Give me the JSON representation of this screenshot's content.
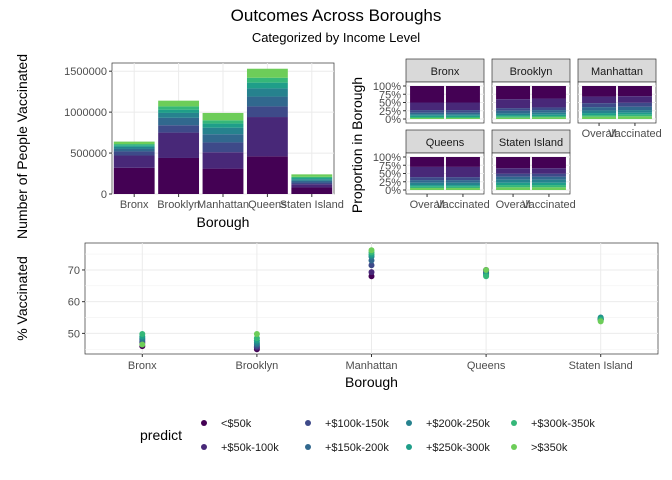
{
  "title": "Outcomes Across Boroughs",
  "subtitle": "Categorized by Income Level",
  "colors": [
    "#440154",
    "#482878",
    "#3E4A89",
    "#31688E",
    "#26828E",
    "#1F9E89",
    "#35B779",
    "#6DCD59",
    "#B4DE2C",
    "#FDE725"
  ],
  "chart_data": [
    {
      "type": "bar",
      "stacked": true,
      "xlabel": "Borough",
      "ylabel": "Number of People Vaccinated",
      "ylim": [
        0,
        1600000
      ],
      "yticks": [
        0,
        500000,
        1000000,
        1500000
      ],
      "ytick_labels": [
        "0",
        "500000",
        "1000000",
        "1500000"
      ],
      "categories": [
        "Bronx",
        "Brooklyn",
        "Manhattan",
        "Queens",
        "Staten Island"
      ],
      "series": [
        {
          "name": "<$50k",
          "values": [
            320000,
            440000,
            310000,
            460000,
            80000
          ]
        },
        {
          "name": "+$50k-100k",
          "values": [
            150000,
            310000,
            200000,
            480000,
            40000
          ]
        },
        {
          "name": "+$100k-150k",
          "values": [
            50000,
            90000,
            120000,
            130000,
            20000
          ]
        },
        {
          "name": "+$150k-200k",
          "values": [
            30000,
            90000,
            100000,
            120000,
            20000
          ]
        },
        {
          "name": "+$200k-250k",
          "values": [
            25000,
            60000,
            80000,
            100000,
            20000
          ]
        },
        {
          "name": "+$250k-300k",
          "values": [
            20000,
            40000,
            50000,
            70000,
            15000
          ]
        },
        {
          "name": "+$300k-350k",
          "values": [
            15000,
            40000,
            40000,
            60000,
            15000
          ]
        },
        {
          "name": ">$350k",
          "values": [
            30000,
            70000,
            90000,
            110000,
            30000
          ]
        }
      ]
    },
    {
      "type": "bar",
      "stacked": true,
      "faceted": true,
      "ylabel": "Proportion in Borough",
      "ytick_labels": [
        "0%",
        "25%",
        "50%",
        "75%",
        "100%"
      ],
      "facets": [
        "Bronx",
        "Brooklyn",
        "Manhattan",
        "Queens",
        "Staten Island"
      ],
      "categories": [
        "Overall",
        "Vaccinated"
      ],
      "proportions": {
        "Bronx": {
          "Overall": [
            0.5,
            0.23,
            0.08,
            0.05,
            0.04,
            0.04,
            0.03,
            0.03
          ],
          "Vaccinated": [
            0.5,
            0.23,
            0.08,
            0.05,
            0.04,
            0.04,
            0.03,
            0.03
          ]
        },
        "Brooklyn": {
          "Overall": [
            0.4,
            0.27,
            0.08,
            0.08,
            0.05,
            0.04,
            0.04,
            0.04
          ],
          "Vaccinated": [
            0.38,
            0.27,
            0.08,
            0.08,
            0.06,
            0.04,
            0.04,
            0.05
          ]
        },
        "Manhattan": {
          "Overall": [
            0.32,
            0.2,
            0.12,
            0.1,
            0.08,
            0.06,
            0.05,
            0.07
          ],
          "Vaccinated": [
            0.31,
            0.2,
            0.12,
            0.1,
            0.08,
            0.06,
            0.05,
            0.08
          ]
        },
        "Queens": {
          "Overall": [
            0.3,
            0.31,
            0.09,
            0.08,
            0.07,
            0.05,
            0.04,
            0.06
          ],
          "Vaccinated": [
            0.3,
            0.31,
            0.09,
            0.08,
            0.07,
            0.05,
            0.04,
            0.06
          ]
        },
        "Staten Island": {
          "Overall": [
            0.34,
            0.17,
            0.09,
            0.09,
            0.09,
            0.07,
            0.07,
            0.08
          ],
          "Vaccinated": [
            0.34,
            0.17,
            0.09,
            0.09,
            0.09,
            0.07,
            0.07,
            0.08
          ]
        }
      }
    },
    {
      "type": "scatter",
      "xlabel": "Borough",
      "ylabel": "% Vaccinated",
      "ylim": [
        43.5,
        78.5
      ],
      "yticks": [
        50,
        60,
        70
      ],
      "ytick_labels": [
        "50",
        "60",
        "70"
      ],
      "categories": [
        "Bronx",
        "Brooklyn",
        "Manhattan",
        "Queens",
        "Staten Island"
      ],
      "series": [
        {
          "name": "<$50k",
          "values": [
            46.0,
            45.0,
            68.0,
            70.0,
            54.5
          ]
        },
        {
          "name": "+$50k-100k",
          "values": [
            47.0,
            45.5,
            69.3,
            69.7,
            54.3
          ]
        },
        {
          "name": "+$100k-150k",
          "values": [
            47.5,
            46.0,
            71.5,
            69.3,
            54.6
          ]
        },
        {
          "name": "+$150k-200k",
          "values": [
            48.0,
            46.5,
            73.0,
            69.0,
            54.5
          ]
        },
        {
          "name": "+$200k-250k",
          "values": [
            48.5,
            47.0,
            74.2,
            68.7,
            55.0
          ]
        },
        {
          "name": "+$250k-300k",
          "values": [
            49.0,
            47.7,
            74.8,
            68.3,
            54.8
          ]
        },
        {
          "name": "+$300k-350k",
          "values": [
            49.8,
            48.5,
            75.5,
            68.0,
            54.2
          ]
        },
        {
          "name": ">$350k",
          "values": [
            46.5,
            49.8,
            76.2,
            70.0,
            53.8
          ]
        }
      ]
    }
  ],
  "legend": {
    "title": "predict",
    "items": [
      "<$50k",
      "+$50k-100k",
      "+$100k-150k",
      "+$150k-200k",
      "+$200k-250k",
      "+$250k-300k",
      "+$300k-350k",
      ">$350k"
    ]
  }
}
